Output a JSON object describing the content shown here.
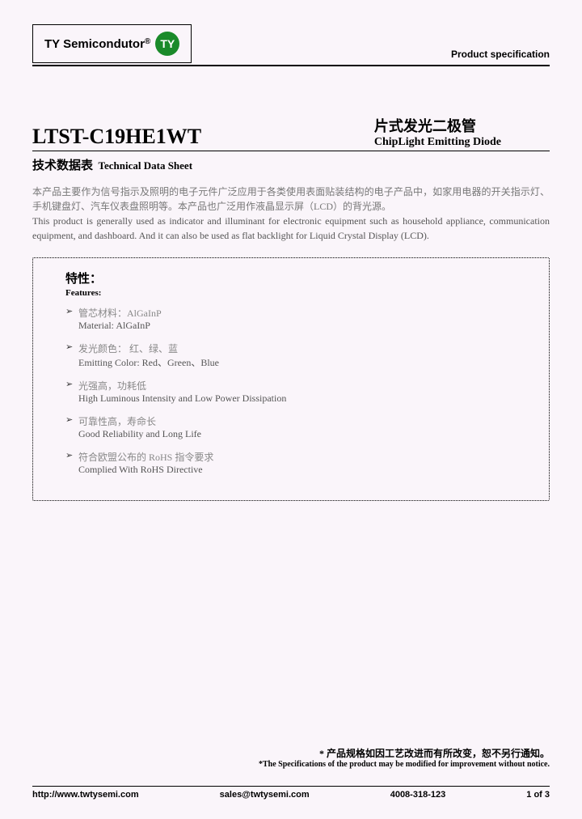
{
  "header": {
    "company": "TY Semicondutor",
    "reg": "®",
    "logo_text": "TY",
    "logo_bg": "#1a8a2a",
    "prod_spec": "Product specification"
  },
  "title": {
    "part_number": "LTST-C19HE1WT",
    "cn": "片式发光二极管",
    "en": "ChipLight Emitting Diode"
  },
  "subtitle": {
    "cn": "技术数据表",
    "en": "Technical Data Sheet"
  },
  "description": {
    "cn": "本产品主要作为信号指示及照明的电子元件广泛应用于各类使用表面贴装结构的电子产品中，如家用电器的开关指示灯、手机键盘灯、汽车仪表盘照明等。本产品也广泛用作液晶显示屏（LCD）的背光源。",
    "en": "This product is generally used as indicator and illuminant for electronic equipment such as household appliance, communication equipment, and dashboard. And it can also be used as flat backlight for Liquid Crystal Display (LCD)."
  },
  "features": {
    "title_cn": "特性：",
    "title_en": "Features:",
    "items": [
      {
        "cn": "管芯材料：AlGaInP",
        "en": "Material:   AlGaInP"
      },
      {
        "cn": "发光颜色：    红、绿、蓝",
        "en": "Emitting Color: Red、Green、Blue"
      },
      {
        "cn": "光强高，功耗低",
        "en": "High Luminous Intensity and Low Power Dissipation"
      },
      {
        "cn": "可靠性高，寿命长",
        "en": "Good Reliability and Long Life"
      },
      {
        "cn": "符合欧盟公布的 RoHS 指令要求",
        "en": "Complied With RoHS Directive"
      }
    ]
  },
  "disclaimer": {
    "star": "*",
    "cn": "产品规格如因工艺改进而有所改变，恕不另行通知。",
    "en": "*The Specifications of the product may be modified for improvement without notice."
  },
  "footer": {
    "url": "http://www.twtysemi.com",
    "email": "sales@twtysemi.com",
    "phone": "4008-318-123",
    "page": "1 of 3"
  }
}
